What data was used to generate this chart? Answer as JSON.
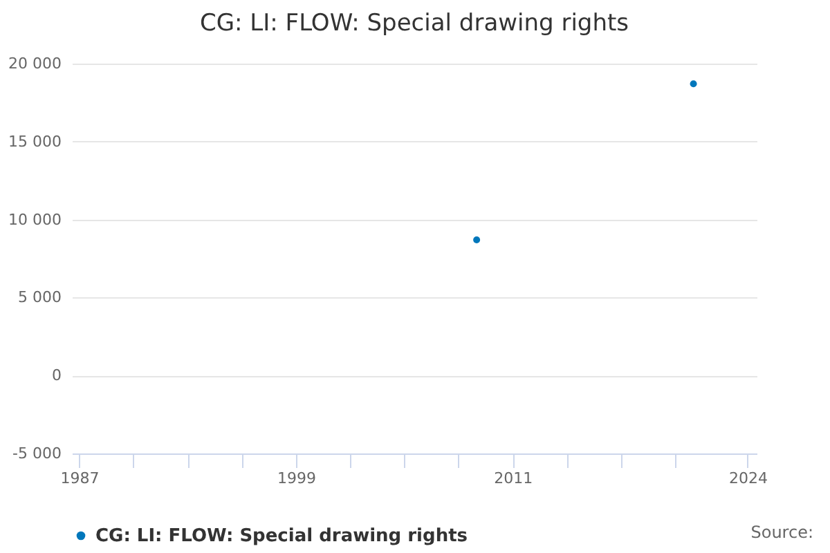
{
  "chart_data": {
    "type": "scatter",
    "title": "CG: LI: FLOW: Special drawing rights",
    "x": [
      2009,
      2021
    ],
    "series": [
      {
        "name": "CG: LI: FLOW: Special drawing rights",
        "color": "#0077bb",
        "values": [
          8700,
          18700
        ]
      }
    ],
    "xlim": [
      1986.6,
      2024.5
    ],
    "xticks": [
      1987,
      {
        "value": 1990,
        "label": null
      },
      {
        "value": 1993,
        "label": null
      },
      {
        "value": 1996,
        "label": null
      },
      1999,
      {
        "value": 2002,
        "label": null
      },
      {
        "value": 2005,
        "label": null
      },
      {
        "value": 2008,
        "label": null
      },
      2011,
      {
        "value": 2014,
        "label": null
      },
      {
        "value": 2017,
        "label": null
      },
      {
        "value": 2020,
        "label": null
      },
      2024
    ],
    "ylim": [
      -5000,
      20000
    ],
    "yticks": [
      {
        "value": -5000,
        "label": "-5 000"
      },
      0,
      {
        "value": 5000,
        "label": "5 000"
      },
      {
        "value": 10000,
        "label": "10 000"
      },
      {
        "value": 15000,
        "label": "15 000"
      },
      {
        "value": 20000,
        "label": "20 000"
      }
    ],
    "grid": "y",
    "legend": "bottom",
    "marker": "circle",
    "annotations": [
      "Source:"
    ]
  }
}
